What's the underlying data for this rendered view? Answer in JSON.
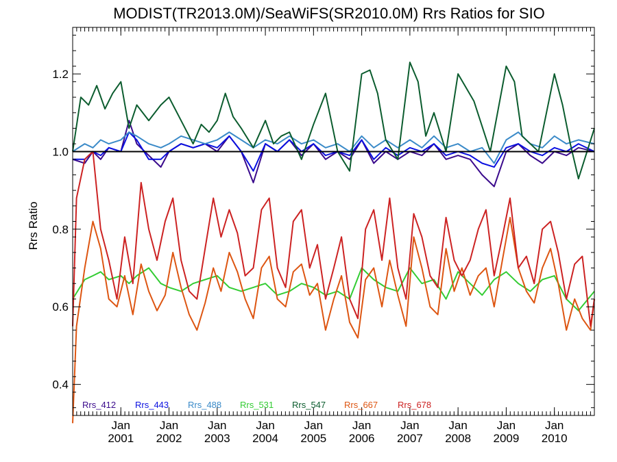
{
  "chart_data": {
    "type": "line",
    "title": "MODIST(TR2013.0M)/SeaWiFS(SR2010.0M)  Rrs Ratios for SIO",
    "ylabel": "Rrs Ratio",
    "xlabel": "",
    "xlim": [
      2000.0,
      2010.83
    ],
    "ylim": [
      0.32,
      1.32
    ],
    "yticks": [
      0.4,
      0.6,
      0.8,
      1.0,
      1.2
    ],
    "ytick_labels": [
      "0.4",
      "0.6",
      "0.8",
      "1.0",
      "1.2"
    ],
    "xticks": [
      2001.0,
      2002.0,
      2003.0,
      2004.0,
      2005.0,
      2006.0,
      2007.0,
      2008.0,
      2009.0,
      2010.0
    ],
    "xtick_labels": [
      [
        "Jan",
        "2001"
      ],
      [
        "Jan",
        "2002"
      ],
      [
        "Jan",
        "2003"
      ],
      [
        "Jan",
        "2004"
      ],
      [
        "Jan",
        "2005"
      ],
      [
        "Jan",
        "2006"
      ],
      [
        "Jan",
        "2007"
      ],
      [
        "Jan",
        "2008"
      ],
      [
        "Jan",
        "2009"
      ],
      [
        "Jan",
        "2010"
      ]
    ],
    "reference_line": 1.0,
    "grid": false,
    "legend_position": "bottom-left",
    "series": [
      {
        "name": "Rrs_412",
        "color": "#3a0a8c",
        "x": [
          2000.0,
          2000.25,
          2000.42,
          2000.58,
          2000.75,
          2001.0,
          2001.17,
          2001.33,
          2001.58,
          2001.83,
          2002.0,
          2002.25,
          2002.5,
          2002.75,
          2003.0,
          2003.25,
          2003.5,
          2003.75,
          2004.0,
          2004.25,
          2004.5,
          2004.75,
          2005.0,
          2005.25,
          2005.5,
          2005.75,
          2006.0,
          2006.25,
          2006.5,
          2006.75,
          2007.0,
          2007.25,
          2007.5,
          2007.75,
          2008.0,
          2008.25,
          2008.5,
          2008.75,
          2009.0,
          2009.25,
          2009.5,
          2009.75,
          2010.0,
          2010.25,
          2010.5,
          2010.83
        ],
        "values": [
          0.98,
          0.97,
          1.0,
          0.98,
          1.01,
          1.0,
          1.08,
          1.02,
          0.99,
          0.96,
          1.0,
          1.02,
          1.01,
          1.02,
          1.0,
          1.04,
          1.0,
          0.92,
          1.02,
          1.0,
          1.03,
          0.99,
          1.02,
          0.98,
          1.0,
          0.98,
          1.03,
          0.97,
          1.0,
          0.98,
          1.0,
          0.99,
          1.02,
          0.98,
          0.99,
          0.98,
          0.94,
          0.91,
          1.0,
          1.02,
          0.99,
          0.97,
          1.0,
          0.99,
          1.01,
          1.0
        ]
      },
      {
        "name": "Rrs_443",
        "color": "#0a10e0",
        "x": [
          2000.0,
          2000.25,
          2000.42,
          2000.58,
          2000.75,
          2001.0,
          2001.17,
          2001.33,
          2001.58,
          2001.83,
          2002.0,
          2002.25,
          2002.5,
          2002.75,
          2003.0,
          2003.25,
          2003.5,
          2003.75,
          2004.0,
          2004.25,
          2004.5,
          2004.75,
          2005.0,
          2005.25,
          2005.5,
          2005.75,
          2006.0,
          2006.25,
          2006.5,
          2006.75,
          2007.0,
          2007.25,
          2007.5,
          2007.75,
          2008.0,
          2008.25,
          2008.5,
          2008.75,
          2009.0,
          2009.25,
          2009.5,
          2009.75,
          2010.0,
          2010.25,
          2010.5,
          2010.83
        ],
        "values": [
          0.98,
          0.98,
          1.0,
          0.99,
          1.01,
          1.0,
          1.05,
          1.03,
          0.98,
          0.98,
          1.0,
          1.02,
          1.01,
          1.02,
          1.01,
          1.04,
          1.0,
          0.95,
          1.02,
          1.0,
          1.03,
          1.0,
          1.02,
          0.99,
          1.0,
          0.99,
          1.03,
          0.98,
          1.01,
          0.99,
          1.01,
          1.0,
          1.02,
          0.99,
          1.0,
          0.99,
          0.97,
          0.96,
          1.01,
          1.02,
          1.0,
          0.99,
          1.01,
          1.0,
          1.02,
          1.0
        ]
      },
      {
        "name": "Rrs_488",
        "color": "#3a8ac8",
        "x": [
          2000.0,
          2000.25,
          2000.42,
          2000.58,
          2000.75,
          2001.0,
          2001.17,
          2001.33,
          2001.58,
          2001.83,
          2002.0,
          2002.25,
          2002.5,
          2002.75,
          2003.0,
          2003.25,
          2003.5,
          2003.75,
          2004.0,
          2004.25,
          2004.5,
          2004.75,
          2005.0,
          2005.25,
          2005.5,
          2005.75,
          2006.0,
          2006.25,
          2006.5,
          2006.75,
          2007.0,
          2007.25,
          2007.5,
          2007.75,
          2008.0,
          2008.25,
          2008.5,
          2008.75,
          2009.0,
          2009.25,
          2009.5,
          2009.75,
          2010.0,
          2010.25,
          2010.5,
          2010.83
        ],
        "values": [
          1.0,
          1.02,
          1.01,
          1.03,
          1.02,
          1.03,
          1.05,
          1.04,
          1.02,
          1.01,
          1.02,
          1.04,
          1.03,
          1.02,
          1.03,
          1.05,
          1.03,
          1.01,
          1.03,
          1.02,
          1.04,
          1.02,
          1.03,
          1.01,
          1.02,
          1.0,
          1.04,
          1.01,
          1.03,
          1.01,
          1.03,
          1.01,
          1.04,
          1.01,
          1.02,
          1.0,
          1.01,
          0.97,
          1.03,
          1.05,
          1.02,
          1.01,
          1.04,
          1.02,
          1.03,
          1.02
        ]
      },
      {
        "name": "Rrs_531",
        "color": "#33cc33",
        "x": [
          2000.0,
          2000.25,
          2000.42,
          2000.58,
          2000.75,
          2001.0,
          2001.17,
          2001.33,
          2001.58,
          2001.83,
          2002.0,
          2002.25,
          2002.5,
          2002.75,
          2003.0,
          2003.25,
          2003.5,
          2003.75,
          2004.0,
          2004.25,
          2004.5,
          2004.75,
          2005.0,
          2005.25,
          2005.5,
          2005.75,
          2006.0,
          2006.25,
          2006.5,
          2006.75,
          2007.0,
          2007.25,
          2007.5,
          2007.75,
          2008.0,
          2008.25,
          2008.5,
          2008.75,
          2009.0,
          2009.25,
          2009.5,
          2009.75,
          2010.0,
          2010.25,
          2010.5,
          2010.83
        ],
        "values": [
          0.62,
          0.67,
          0.68,
          0.69,
          0.67,
          0.68,
          0.66,
          0.68,
          0.7,
          0.66,
          0.65,
          0.64,
          0.66,
          0.67,
          0.68,
          0.65,
          0.64,
          0.65,
          0.66,
          0.63,
          0.64,
          0.66,
          0.65,
          0.63,
          0.64,
          0.62,
          0.7,
          0.67,
          0.65,
          0.64,
          0.7,
          0.66,
          0.67,
          0.62,
          0.69,
          0.66,
          0.63,
          0.67,
          0.69,
          0.66,
          0.64,
          0.67,
          0.68,
          0.62,
          0.59,
          0.64
        ]
      },
      {
        "name": "Rrs_547",
        "color": "#0b5c2e",
        "x": [
          2000.0,
          2000.17,
          2000.33,
          2000.5,
          2000.67,
          2000.83,
          2001.0,
          2001.17,
          2001.33,
          2001.58,
          2001.83,
          2002.0,
          2002.25,
          2002.5,
          2002.67,
          2002.83,
          2003.0,
          2003.17,
          2003.33,
          2003.5,
          2003.75,
          2004.0,
          2004.17,
          2004.33,
          2004.5,
          2004.75,
          2005.0,
          2005.25,
          2005.5,
          2005.75,
          2006.0,
          2006.17,
          2006.33,
          2006.5,
          2006.75,
          2007.0,
          2007.17,
          2007.33,
          2007.5,
          2007.75,
          2008.0,
          2008.33,
          2008.67,
          2009.0,
          2009.17,
          2009.33,
          2009.67,
          2010.0,
          2010.17,
          2010.33,
          2010.5,
          2010.83
        ],
        "values": [
          1.0,
          1.14,
          1.12,
          1.17,
          1.11,
          1.15,
          1.18,
          1.06,
          1.12,
          1.08,
          1.12,
          1.14,
          1.08,
          1.02,
          1.07,
          1.05,
          1.08,
          1.15,
          1.09,
          1.06,
          1.01,
          1.08,
          1.02,
          1.04,
          1.05,
          0.98,
          1.07,
          1.15,
          1.0,
          0.95,
          1.2,
          1.21,
          1.15,
          1.03,
          0.98,
          1.23,
          1.18,
          1.04,
          1.1,
          1.0,
          1.2,
          1.13,
          1.0,
          1.22,
          1.18,
          1.04,
          1.0,
          1.2,
          1.12,
          1.02,
          0.93,
          1.06
        ]
      },
      {
        "name": "Rrs_667",
        "color": "#dd5511",
        "x": [
          2000.0,
          2000.08,
          2000.25,
          2000.42,
          2000.58,
          2000.75,
          2000.92,
          2001.08,
          2001.25,
          2001.42,
          2001.58,
          2001.75,
          2001.92,
          2002.08,
          2002.25,
          2002.42,
          2002.58,
          2002.75,
          2002.92,
          2003.08,
          2003.25,
          2003.42,
          2003.58,
          2003.75,
          2003.92,
          2004.08,
          2004.25,
          2004.42,
          2004.58,
          2004.75,
          2004.92,
          2005.08,
          2005.25,
          2005.42,
          2005.58,
          2005.75,
          2005.92,
          2006.08,
          2006.25,
          2006.42,
          2006.58,
          2006.75,
          2006.92,
          2007.08,
          2007.25,
          2007.42,
          2007.58,
          2007.75,
          2007.92,
          2008.08,
          2008.25,
          2008.42,
          2008.58,
          2008.75,
          2008.92,
          2009.08,
          2009.25,
          2009.42,
          2009.58,
          2009.75,
          2009.92,
          2010.08,
          2010.25,
          2010.42,
          2010.58,
          2010.75,
          2010.83
        ],
        "values": [
          0.3,
          0.55,
          0.7,
          0.82,
          0.75,
          0.62,
          0.6,
          0.68,
          0.58,
          0.71,
          0.64,
          0.59,
          0.63,
          0.74,
          0.65,
          0.58,
          0.54,
          0.61,
          0.7,
          0.64,
          0.74,
          0.69,
          0.62,
          0.57,
          0.7,
          0.73,
          0.62,
          0.6,
          0.69,
          0.71,
          0.63,
          0.66,
          0.54,
          0.62,
          0.68,
          0.56,
          0.52,
          0.67,
          0.7,
          0.6,
          0.72,
          0.63,
          0.55,
          0.78,
          0.7,
          0.6,
          0.58,
          0.75,
          0.64,
          0.7,
          0.63,
          0.68,
          0.7,
          0.6,
          0.72,
          0.83,
          0.7,
          0.64,
          0.61,
          0.7,
          0.75,
          0.66,
          0.54,
          0.62,
          0.57,
          0.54,
          0.62
        ]
      },
      {
        "name": "Rrs_678",
        "color": "#cc2222",
        "x": [
          2000.0,
          2000.08,
          2000.25,
          2000.42,
          2000.58,
          2000.75,
          2000.92,
          2001.08,
          2001.25,
          2001.42,
          2001.58,
          2001.75,
          2001.92,
          2002.08,
          2002.25,
          2002.42,
          2002.58,
          2002.75,
          2002.92,
          2003.08,
          2003.25,
          2003.42,
          2003.58,
          2003.75,
          2003.92,
          2004.08,
          2004.25,
          2004.42,
          2004.58,
          2004.75,
          2004.92,
          2005.08,
          2005.25,
          2005.42,
          2005.58,
          2005.75,
          2005.92,
          2006.08,
          2006.25,
          2006.42,
          2006.58,
          2006.75,
          2006.92,
          2007.08,
          2007.25,
          2007.42,
          2007.58,
          2007.75,
          2007.92,
          2008.08,
          2008.25,
          2008.42,
          2008.58,
          2008.75,
          2008.92,
          2009.08,
          2009.25,
          2009.42,
          2009.58,
          2009.75,
          2009.92,
          2010.08,
          2010.25,
          2010.42,
          2010.58,
          2010.75,
          2010.83
        ],
        "values": [
          0.55,
          0.88,
          0.98,
          1.0,
          0.8,
          0.72,
          0.62,
          0.78,
          0.66,
          0.92,
          0.8,
          0.72,
          0.82,
          0.88,
          0.72,
          0.64,
          0.62,
          0.75,
          0.88,
          0.78,
          0.85,
          0.79,
          0.68,
          0.7,
          0.85,
          0.88,
          0.7,
          0.65,
          0.82,
          0.85,
          0.7,
          0.76,
          0.62,
          0.7,
          0.78,
          0.62,
          0.57,
          0.8,
          0.85,
          0.72,
          0.88,
          0.7,
          0.62,
          0.84,
          0.78,
          0.68,
          0.65,
          0.83,
          0.72,
          0.68,
          0.72,
          0.8,
          0.85,
          0.68,
          0.78,
          0.88,
          0.7,
          0.73,
          0.66,
          0.8,
          0.82,
          0.74,
          0.62,
          0.71,
          0.73,
          0.55,
          0.62
        ]
      }
    ]
  }
}
